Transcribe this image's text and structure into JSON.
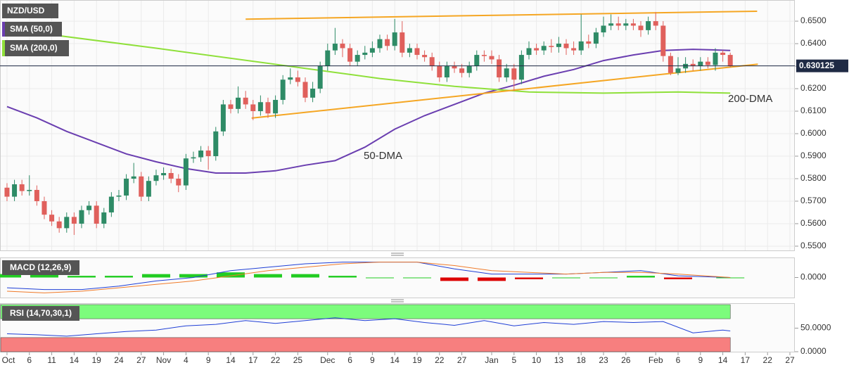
{
  "chart_data": [
    {
      "type": "candlestick",
      "title": "NZD/USD",
      "colors": {
        "up": "#2e8b66",
        "down": "#e0605c"
      },
      "candles": [
        [
          0.576,
          0.578,
          0.57,
          0.572
        ],
        [
          0.572,
          0.5795,
          0.57,
          0.5775
        ],
        [
          0.5775,
          0.5795,
          0.5725,
          0.5745
        ],
        [
          0.5745,
          0.5815,
          0.5725,
          0.575
        ],
        [
          0.575,
          0.577,
          0.568,
          0.57
        ],
        [
          0.57,
          0.572,
          0.562,
          0.564
        ],
        [
          0.564,
          0.566,
          0.559,
          0.561
        ],
        [
          0.561,
          0.563,
          0.556,
          0.558
        ],
        [
          0.558,
          0.565,
          0.556,
          0.563
        ],
        [
          0.563,
          0.565,
          0.555,
          0.56
        ],
        [
          0.56,
          0.568,
          0.558,
          0.566
        ],
        [
          0.566,
          0.57,
          0.564,
          0.568
        ],
        [
          0.568,
          0.57,
          0.558,
          0.56
        ],
        [
          0.56,
          0.567,
          0.558,
          0.565
        ],
        [
          0.565,
          0.574,
          0.563,
          0.572
        ],
        [
          0.572,
          0.575,
          0.57,
          0.5725
        ],
        [
          0.5725,
          0.582,
          0.5705,
          0.58
        ],
        [
          0.58,
          0.587,
          0.578,
          0.581
        ],
        [
          0.581,
          0.583,
          0.57,
          0.572
        ],
        [
          0.572,
          0.581,
          0.57,
          0.579
        ],
        [
          0.579,
          0.584,
          0.577,
          0.5815
        ],
        [
          0.5815,
          0.585,
          0.5795,
          0.5825
        ],
        [
          0.5825,
          0.5845,
          0.578,
          0.58
        ],
        [
          0.58,
          0.582,
          0.574,
          0.577
        ],
        [
          0.577,
          0.591,
          0.575,
          0.589
        ],
        [
          0.589,
          0.592,
          0.587,
          0.5895
        ],
        [
          0.5895,
          0.5945,
          0.5875,
          0.5925
        ],
        [
          0.5925,
          0.5945,
          0.584,
          0.59
        ],
        [
          0.59,
          0.603,
          0.588,
          0.601
        ],
        [
          0.601,
          0.615,
          0.599,
          0.613
        ],
        [
          0.613,
          0.615,
          0.609,
          0.611
        ],
        [
          0.611,
          0.621,
          0.609,
          0.616
        ],
        [
          0.616,
          0.619,
          0.611,
          0.613
        ],
        [
          0.613,
          0.615,
          0.606,
          0.61
        ],
        [
          0.61,
          0.617,
          0.608,
          0.614
        ],
        [
          0.614,
          0.616,
          0.607,
          0.609
        ],
        [
          0.609,
          0.617,
          0.607,
          0.615
        ],
        [
          0.615,
          0.626,
          0.613,
          0.624
        ],
        [
          0.624,
          0.629,
          0.622,
          0.625
        ],
        [
          0.625,
          0.628,
          0.621,
          0.623
        ],
        [
          0.623,
          0.625,
          0.614,
          0.616
        ],
        [
          0.616,
          0.623,
          0.614,
          0.62
        ],
        [
          0.62,
          0.632,
          0.618,
          0.63
        ],
        [
          0.63,
          0.64,
          0.628,
          0.637
        ],
        [
          0.637,
          0.647,
          0.635,
          0.64
        ],
        [
          0.64,
          0.642,
          0.634,
          0.638
        ],
        [
          0.638,
          0.64,
          0.63,
          0.632
        ],
        [
          0.632,
          0.637,
          0.63,
          0.635
        ],
        [
          0.635,
          0.639,
          0.633,
          0.636
        ],
        [
          0.636,
          0.641,
          0.634,
          0.638
        ],
        [
          0.638,
          0.644,
          0.636,
          0.642
        ],
        [
          0.642,
          0.644,
          0.637,
          0.639
        ],
        [
          0.639,
          0.651,
          0.637,
          0.645
        ],
        [
          0.645,
          0.65,
          0.634,
          0.636
        ],
        [
          0.636,
          0.64,
          0.634,
          0.638
        ],
        [
          0.638,
          0.64,
          0.633,
          0.635
        ],
        [
          0.635,
          0.637,
          0.632,
          0.634
        ],
        [
          0.634,
          0.636,
          0.628,
          0.63
        ],
        [
          0.63,
          0.632,
          0.623,
          0.625
        ],
        [
          0.625,
          0.632,
          0.623,
          0.63
        ],
        [
          0.63,
          0.632,
          0.627,
          0.629
        ],
        [
          0.629,
          0.631,
          0.625,
          0.627
        ],
        [
          0.627,
          0.632,
          0.625,
          0.63
        ],
        [
          0.63,
          0.637,
          0.628,
          0.635
        ],
        [
          0.635,
          0.637,
          0.632,
          0.6345
        ],
        [
          0.6345,
          0.637,
          0.631,
          0.633
        ],
        [
          0.633,
          0.635,
          0.623,
          0.625
        ],
        [
          0.625,
          0.631,
          0.623,
          0.629
        ],
        [
          0.629,
          0.631,
          0.619,
          0.624
        ],
        [
          0.624,
          0.637,
          0.622,
          0.635
        ],
        [
          0.635,
          0.641,
          0.633,
          0.638
        ],
        [
          0.638,
          0.64,
          0.635,
          0.637
        ],
        [
          0.637,
          0.641,
          0.635,
          0.639
        ],
        [
          0.639,
          0.642,
          0.636,
          0.6385
        ],
        [
          0.6385,
          0.643,
          0.636,
          0.64
        ],
        [
          0.64,
          0.642,
          0.635,
          0.638
        ],
        [
          0.638,
          0.641,
          0.635,
          0.637
        ],
        [
          0.637,
          0.653,
          0.635,
          0.641
        ],
        [
          0.641,
          0.644,
          0.638,
          0.64
        ],
        [
          0.64,
          0.647,
          0.638,
          0.645
        ],
        [
          0.645,
          0.652,
          0.643,
          0.648
        ],
        [
          0.648,
          0.653,
          0.646,
          0.649
        ],
        [
          0.649,
          0.652,
          0.646,
          0.648
        ],
        [
          0.648,
          0.651,
          0.646,
          0.649
        ],
        [
          0.649,
          0.651,
          0.646,
          0.648
        ],
        [
          0.648,
          0.65,
          0.643,
          0.646
        ],
        [
          0.646,
          0.652,
          0.644,
          0.65
        ],
        [
          0.65,
          0.654,
          0.646,
          0.648
        ],
        [
          0.648,
          0.65,
          0.632,
          0.6345
        ],
        [
          0.6345,
          0.636,
          0.626,
          0.627
        ],
        [
          0.627,
          0.634,
          0.626,
          0.629
        ],
        [
          0.629,
          0.634,
          0.627,
          0.631
        ],
        [
          0.631,
          0.633,
          0.628,
          0.63
        ],
        [
          0.63,
          0.634,
          0.628,
          0.632
        ],
        [
          0.632,
          0.634,
          0.629,
          0.6305
        ],
        [
          0.6305,
          0.638,
          0.628,
          0.636
        ],
        [
          0.636,
          0.637,
          0.632,
          0.635
        ],
        [
          0.635,
          0.636,
          0.6295,
          0.6301
        ]
      ],
      "series": [
        {
          "name": "SMA (50,0)",
          "color": "#6a3eb0",
          "x": [
            0,
            4,
            8,
            12,
            16,
            20,
            24,
            28,
            32,
            36,
            40,
            44,
            48,
            52,
            56,
            60,
            64,
            68,
            72,
            76,
            80,
            84,
            88,
            92,
            97
          ],
          "values": [
            0.612,
            0.607,
            0.601,
            0.596,
            0.591,
            0.5875,
            0.5845,
            0.5825,
            0.5825,
            0.5835,
            0.586,
            0.588,
            0.594,
            0.602,
            0.608,
            0.613,
            0.618,
            0.6215,
            0.6255,
            0.6285,
            0.6325,
            0.635,
            0.637,
            0.6375,
            0.637
          ]
        },
        {
          "name": "SMA (200,0)",
          "color": "#8fe03a",
          "x": [
            0,
            20,
            40,
            50,
            60,
            70,
            80,
            90,
            97
          ],
          "values": [
            0.6465,
            0.638,
            0.629,
            0.6245,
            0.621,
            0.6185,
            0.618,
            0.6185,
            0.618
          ]
        }
      ],
      "annotations": [
        "50-DMA",
        "200-DMA"
      ],
      "trendlines": [
        {
          "color": "#f5a623",
          "x": [
            32,
            100.6
          ],
          "values": [
            0.6509,
            0.6544
          ]
        },
        {
          "color": "#f5a623",
          "x": [
            32.8,
            100.7
          ],
          "values": [
            0.6069,
            0.6309
          ]
        }
      ],
      "last_price": {
        "value": 0.630125,
        "label": "0.630125"
      },
      "xlim": [
        -0.94,
        105.66
      ],
      "ylim": [
        0.5478,
        0.6594
      ],
      "yticks": [
        {
          "value": 0.65,
          "label": "0.6500"
        },
        {
          "value": 0.64,
          "label": "0.6400"
        },
        {
          "value": 0.63,
          "label": "0.6300"
        },
        {
          "value": 0.62,
          "label": "0.6200"
        },
        {
          "value": 0.61,
          "label": "0.6100"
        },
        {
          "value": 0.6,
          "label": "0.6000"
        },
        {
          "value": 0.59,
          "label": "0.5900"
        },
        {
          "value": 0.58,
          "label": "0.5800"
        },
        {
          "value": 0.57,
          "label": "0.5700"
        },
        {
          "value": 0.56,
          "label": "0.5600"
        },
        {
          "value": 0.55,
          "label": "0.5500"
        }
      ],
      "xticks": [
        {
          "value": 0,
          "label": "Oct"
        },
        {
          "value": 3,
          "label": "6"
        },
        {
          "value": 6,
          "label": "11"
        },
        {
          "value": 9,
          "label": "14"
        },
        {
          "value": 12,
          "label": "19"
        },
        {
          "value": 15,
          "label": "24"
        },
        {
          "value": 18,
          "label": "27"
        },
        {
          "value": 21,
          "label": "Nov"
        },
        {
          "value": 24,
          "label": "4"
        },
        {
          "value": 27,
          "label": "9"
        },
        {
          "value": 30,
          "label": "14"
        },
        {
          "value": 33,
          "label": "17"
        },
        {
          "value": 36,
          "label": "22"
        },
        {
          "value": 39,
          "label": "25"
        },
        {
          "value": 43,
          "label": "Dec"
        },
        {
          "value": 46,
          "label": "6"
        },
        {
          "value": 49,
          "label": "9"
        },
        {
          "value": 52,
          "label": "14"
        },
        {
          "value": 55,
          "label": "19"
        },
        {
          "value": 58,
          "label": "22"
        },
        {
          "value": 61,
          "label": "27"
        },
        {
          "value": 65,
          "label": "Jan"
        },
        {
          "value": 68,
          "label": "5"
        },
        {
          "value": 71,
          "label": "10"
        },
        {
          "value": 74,
          "label": "13"
        },
        {
          "value": 77,
          "label": "18"
        },
        {
          "value": 80,
          "label": "23"
        },
        {
          "value": 83,
          "label": "26"
        },
        {
          "value": 87,
          "label": "Feb"
        },
        {
          "value": 90,
          "label": "6"
        },
        {
          "value": 93,
          "label": "9"
        },
        {
          "value": 96,
          "label": "14"
        },
        {
          "value": 99,
          "label": "17"
        },
        {
          "value": 102,
          "label": "22"
        },
        {
          "value": 105,
          "label": "27"
        }
      ],
      "grid": true
    },
    {
      "type": "macd",
      "title": "MACD (12,26,9)",
      "x": [
        0,
        5,
        10,
        15,
        20,
        25,
        30,
        35,
        40,
        45,
        50,
        55,
        60,
        65,
        70,
        75,
        80,
        85,
        90,
        97
      ],
      "series": [
        {
          "color": "#1f3fd6",
          "values": [
            -0.006,
            -0.007,
            -0.007,
            -0.005,
            -0.002,
            0.0,
            0.004,
            0.006,
            0.008,
            0.009,
            0.009,
            0.009,
            0.005,
            0.002,
            0.002,
            0.002,
            0.003,
            0.004,
            0.001,
            0.0
          ]
        },
        {
          "color": "#f07b2a",
          "values": [
            -0.008,
            -0.009,
            -0.008,
            -0.006,
            -0.004,
            -0.002,
            0.001,
            0.004,
            0.006,
            0.008,
            0.009,
            0.009,
            0.007,
            0.004,
            0.003,
            0.002,
            0.003,
            0.003,
            0.002,
            0.0
          ]
        }
      ],
      "histogram": [
        0.002,
        0.002,
        0.001,
        0.001,
        0.002,
        0.002,
        0.003,
        0.002,
        0.002,
        0.001,
        0.0,
        0.0,
        -0.002,
        -0.002,
        -0.001,
        0.0,
        0.0,
        0.001,
        -0.001,
        0.0
      ],
      "colors": {
        "up": "#22cc22",
        "down": "#dd0000"
      },
      "ylim": [
        -0.0121,
        0.0117
      ],
      "yticks": [
        {
          "value": 0,
          "label": "0.0000"
        }
      ]
    },
    {
      "type": "rsi",
      "title": "RSI (14,70,30,1)",
      "x": [
        0,
        4,
        8,
        12,
        16,
        20,
        24,
        28,
        32,
        36,
        40,
        44,
        48,
        52,
        56,
        60,
        64,
        68,
        72,
        76,
        80,
        84,
        88,
        92,
        96,
        97
      ],
      "values": [
        38,
        36,
        33,
        38,
        43,
        46,
        55,
        58,
        66,
        60,
        66,
        72,
        66,
        70,
        62,
        56,
        66,
        55,
        62,
        58,
        64,
        62,
        64,
        40,
        46,
        44
      ],
      "color": "#1f3fd6",
      "bands": [
        {
          "from": 70,
          "to": 100,
          "color": "#7cfc7c"
        },
        {
          "from": 0,
          "to": 30,
          "color": "#f77f7f"
        }
      ],
      "ylim": [
        -1.5,
        103
      ],
      "yticks": [
        {
          "value": 50,
          "label": "50.0000"
        },
        {
          "value": 0,
          "label": "0.0000"
        }
      ]
    }
  ]
}
